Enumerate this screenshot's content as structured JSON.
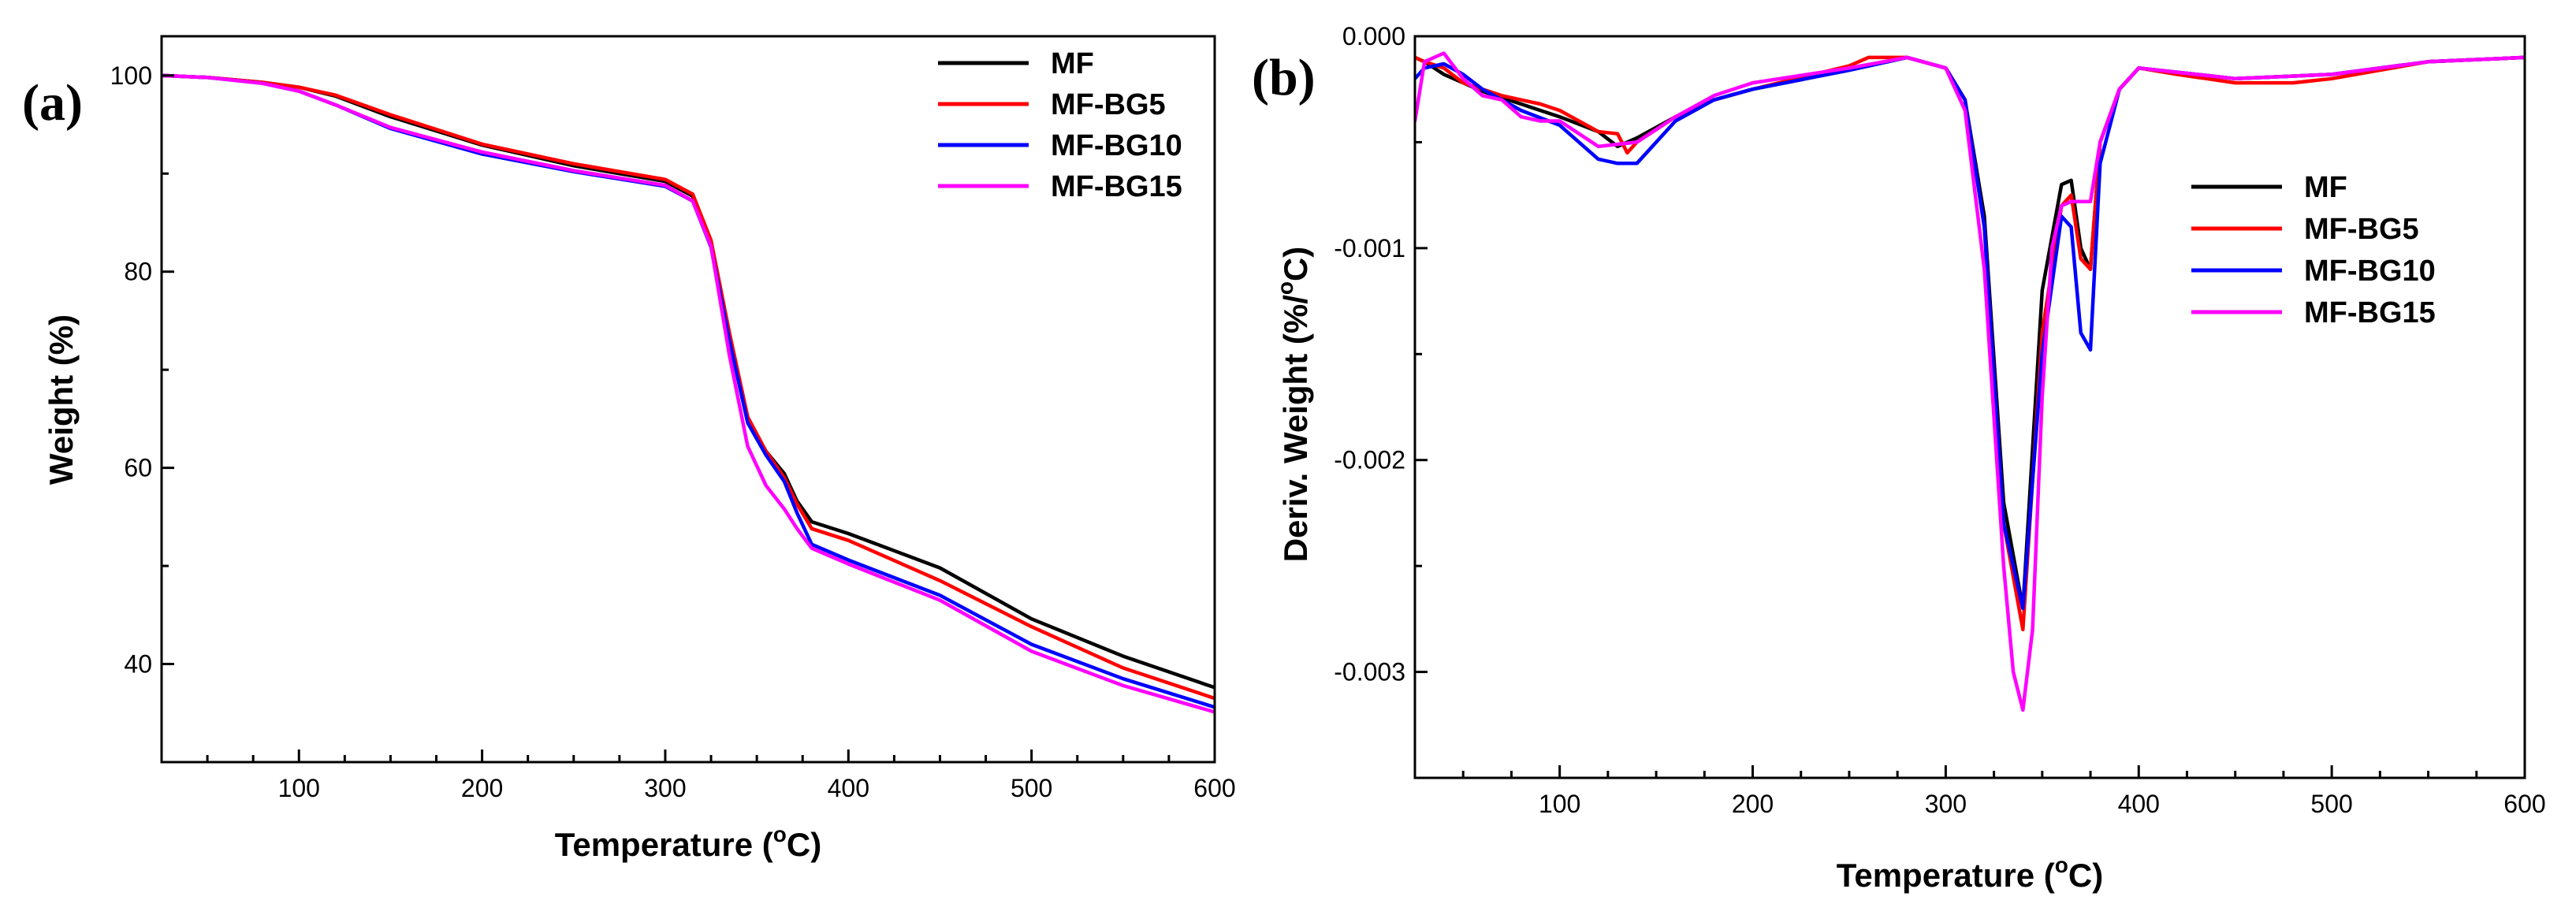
{
  "chart_data": [
    {
      "type": "line",
      "panel_label": "(a)",
      "title": "",
      "xlabel": "Temperature (°C)",
      "xlabel_parts": [
        "Temperature (",
        "o",
        "C)"
      ],
      "ylabel": "Weight (%)",
      "xlim": [
        25,
        600
      ],
      "ylim": [
        30,
        104
      ],
      "xticks": [
        100,
        200,
        300,
        400,
        500,
        600
      ],
      "xtick_labels": [
        "100",
        "200",
        "300",
        "400",
        "500",
        "600"
      ],
      "yticks": [
        40,
        60,
        80,
        100
      ],
      "ytick_labels": [
        "40",
        "60",
        "80",
        "100"
      ],
      "legend_position": "top-right",
      "series": [
        {
          "name": "MF",
          "color": "#000000",
          "x": [
            25,
            50,
            80,
            100,
            120,
            150,
            200,
            250,
            300,
            315,
            325,
            335,
            345,
            355,
            365,
            372,
            380,
            400,
            450,
            500,
            550,
            600
          ],
          "y": [
            100,
            99.8,
            99.3,
            98.8,
            97.9,
            95.8,
            92.9,
            90.8,
            89.2,
            87.7,
            83,
            73.5,
            65,
            61.7,
            59.4,
            56.6,
            54.5,
            53.3,
            49.8,
            44.6,
            40.8,
            37.6
          ]
        },
        {
          "name": "MF-BG5",
          "color": "#ff0000",
          "x": [
            25,
            50,
            80,
            100,
            120,
            150,
            200,
            250,
            300,
            315,
            325,
            335,
            345,
            355,
            365,
            372,
            380,
            400,
            450,
            500,
            550,
            600
          ],
          "y": [
            100,
            99.8,
            99.3,
            98.8,
            98,
            96,
            93,
            91,
            89.4,
            87.9,
            83.2,
            73.8,
            65.2,
            61.7,
            59,
            56.3,
            53.8,
            52.6,
            48.5,
            43.8,
            39.6,
            36.5
          ]
        },
        {
          "name": "MF-BG10",
          "color": "#0000ff",
          "x": [
            25,
            50,
            80,
            100,
            120,
            150,
            200,
            250,
            300,
            315,
            325,
            335,
            345,
            355,
            365,
            372,
            380,
            400,
            450,
            500,
            550,
            600
          ],
          "y": [
            100,
            99.8,
            99.2,
            98.4,
            97,
            94.6,
            92,
            90.2,
            88.7,
            87.2,
            82.5,
            73,
            64.6,
            61.3,
            58.6,
            55.4,
            52.2,
            50.6,
            47,
            42,
            38.5,
            35.6
          ]
        },
        {
          "name": "MF-BG15",
          "color": "#ff00ff",
          "x": [
            25,
            50,
            80,
            100,
            120,
            150,
            200,
            250,
            300,
            315,
            325,
            335,
            345,
            355,
            365,
            372,
            380,
            400,
            450,
            500,
            550,
            600
          ],
          "y": [
            100,
            99.8,
            99.2,
            98.4,
            97,
            94.7,
            92.2,
            90.3,
            88.8,
            87.2,
            82.6,
            71.5,
            62.2,
            58.2,
            55.8,
            53.8,
            51.8,
            50.2,
            46.5,
            41.3,
            37.8,
            35.1
          ]
        }
      ]
    },
    {
      "type": "line",
      "panel_label": "(b)",
      "title": "",
      "xlabel": "Temperature (°C)",
      "xlabel_parts": [
        "Temperature (",
        "o",
        "C)"
      ],
      "ylabel": "Deriv. Weight (%/°C)",
      "ylabel_parts": [
        "Deriv. Weight (%/",
        "o",
        "C)"
      ],
      "xlim": [
        25,
        600
      ],
      "ylim": [
        -0.0035,
        0
      ],
      "xticks": [
        100,
        200,
        300,
        400,
        500,
        600
      ],
      "xtick_labels": [
        "100",
        "200",
        "300",
        "400",
        "500",
        "600"
      ],
      "yticks": [
        0,
        -0.001,
        -0.002,
        -0.003
      ],
      "ytick_labels": [
        "0.000",
        "-0.001",
        "-0.002",
        "-0.003"
      ],
      "legend_position": "center-right",
      "series": [
        {
          "name": "MF",
          "color": "#000000",
          "x": [
            25,
            30,
            40,
            50,
            60,
            80,
            100,
            120,
            130,
            140,
            160,
            180,
            200,
            250,
            280,
            300,
            310,
            320,
            330,
            340,
            350,
            360,
            365,
            370,
            375,
            380,
            390,
            400,
            450,
            500,
            550,
            600
          ],
          "y": [
            -0.0001,
            -0.00012,
            -0.00018,
            -0.00022,
            -0.00026,
            -0.00032,
            -0.00038,
            -0.00045,
            -0.00052,
            -0.00048,
            -0.00038,
            -0.0003,
            -0.00025,
            -0.00016,
            -0.0001,
            -0.00015,
            -0.0003,
            -0.00085,
            -0.0022,
            -0.0027,
            -0.0012,
            -0.0007,
            -0.00068,
            -0.001,
            -0.0011,
            -0.0005,
            -0.00025,
            -0.00015,
            -0.0002,
            -0.00018,
            -0.00012,
            -0.0001
          ]
        },
        {
          "name": "MF-BG5",
          "color": "#ff0000",
          "x": [
            25,
            30,
            40,
            50,
            60,
            70,
            80,
            90,
            100,
            110,
            120,
            130,
            135,
            140,
            160,
            180,
            200,
            250,
            260,
            280,
            300,
            310,
            320,
            330,
            340,
            350,
            360,
            365,
            370,
            375,
            380,
            390,
            400,
            420,
            450,
            480,
            500,
            550,
            600
          ],
          "y": [
            -0.0001,
            -0.00012,
            -0.00015,
            -0.00022,
            -0.00025,
            -0.00028,
            -0.0003,
            -0.00032,
            -0.00035,
            -0.0004,
            -0.00045,
            -0.00046,
            -0.00055,
            -0.0005,
            -0.00038,
            -0.0003,
            -0.00025,
            -0.00014,
            -0.0001,
            -0.0001,
            -0.00015,
            -0.0003,
            -0.0009,
            -0.0023,
            -0.0028,
            -0.0014,
            -0.0008,
            -0.00075,
            -0.00105,
            -0.0011,
            -0.0005,
            -0.00025,
            -0.00015,
            -0.00018,
            -0.00022,
            -0.00022,
            -0.0002,
            -0.00012,
            -0.0001
          ]
        },
        {
          "name": "MF-BG10",
          "color": "#0000ff",
          "x": [
            25,
            30,
            40,
            50,
            60,
            80,
            100,
            120,
            130,
            140,
            160,
            180,
            200,
            250,
            280,
            300,
            310,
            320,
            330,
            340,
            350,
            360,
            365,
            370,
            375,
            380,
            390,
            400,
            450,
            500,
            550,
            600
          ],
          "y": [
            -0.0002,
            -0.00015,
            -0.00013,
            -0.00018,
            -0.00025,
            -0.00035,
            -0.00042,
            -0.00058,
            -0.0006,
            -0.0006,
            -0.0004,
            -0.0003,
            -0.00025,
            -0.00016,
            -0.0001,
            -0.00015,
            -0.0003,
            -0.0009,
            -0.0023,
            -0.0027,
            -0.0015,
            -0.00085,
            -0.0009,
            -0.0014,
            -0.00148,
            -0.0006,
            -0.00025,
            -0.00015,
            -0.0002,
            -0.00018,
            -0.00012,
            -0.0001
          ]
        },
        {
          "name": "MF-BG15",
          "color": "#ff00ff",
          "x": [
            25,
            30,
            40,
            50,
            60,
            70,
            80,
            90,
            100,
            120,
            140,
            160,
            180,
            200,
            250,
            280,
            300,
            310,
            320,
            330,
            335,
            340,
            345,
            350,
            355,
            360,
            365,
            370,
            375,
            380,
            390,
            400,
            450,
            500,
            550,
            600
          ],
          "y": [
            -0.0004,
            -0.00012,
            -8e-05,
            -0.0002,
            -0.00028,
            -0.0003,
            -0.00038,
            -0.0004,
            -0.0004,
            -0.00052,
            -0.0005,
            -0.00038,
            -0.00028,
            -0.00022,
            -0.00015,
            -0.0001,
            -0.00015,
            -0.00035,
            -0.0011,
            -0.0025,
            -0.003,
            -0.00318,
            -0.0028,
            -0.0017,
            -0.001,
            -0.0008,
            -0.00078,
            -0.00078,
            -0.00078,
            -0.0005,
            -0.00025,
            -0.00015,
            -0.0002,
            -0.00018,
            -0.00012,
            -0.0001
          ]
        }
      ]
    }
  ]
}
